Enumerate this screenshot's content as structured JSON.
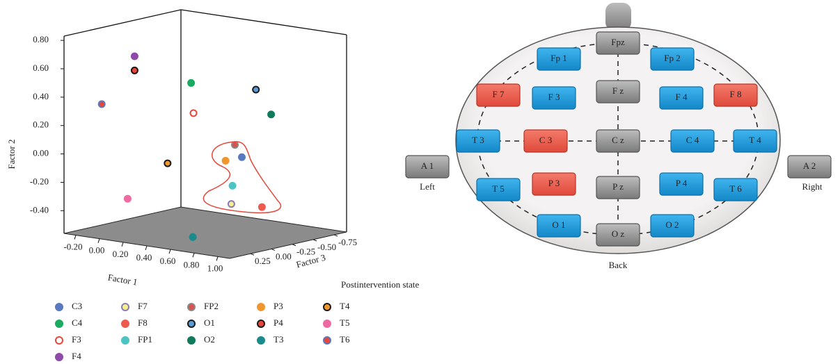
{
  "chart_data": {
    "type": "scatter3d",
    "xlabel": "Factor 1",
    "ylabel": "Factor 2",
    "zlabel": "Factor 3",
    "annotation": "Postintervention state",
    "xlim": [
      -0.3,
      1.1
    ],
    "ylim": [
      -0.56,
      0.83
    ],
    "zlim": [
      0.5,
      -0.9
    ],
    "xticks": [
      {
        "value": -0.2,
        "label": "-0.20"
      },
      {
        "value": 0,
        "label": "0.00"
      },
      {
        "value": 0.2,
        "label": "0.20"
      },
      {
        "value": 0.4,
        "label": "0.40"
      },
      {
        "value": 0.6,
        "label": "0.60"
      },
      {
        "value": 0.8,
        "label": "0.80"
      },
      {
        "value": 1,
        "label": "1.00"
      }
    ],
    "yticks": [
      {
        "value": -0.4,
        "label": "-0.40"
      },
      {
        "value": -0.2,
        "label": "-0.20"
      },
      {
        "value": 0,
        "label": "0.00"
      },
      {
        "value": 0.2,
        "label": "0.20"
      },
      {
        "value": 0.4,
        "label": "0.40"
      },
      {
        "value": 0.6,
        "label": "0.60"
      },
      {
        "value": 0.8,
        "label": "0.80"
      }
    ],
    "zticks": [
      0.25,
      {
        "value": 0,
        "label": "0.00"
      },
      {
        "value": -0.25,
        "label": "-0.25"
      },
      {
        "value": -0.5,
        "label": "-0.50"
      },
      {
        "value": -0.75,
        "label": "-0.75"
      }
    ],
    "series": [
      {
        "name": "C3",
        "color": "#5a78c0",
        "edgecolor": "#5a78c0",
        "x": [
          0.61
        ],
        "values": [
          -0.02
        ],
        "z": [
          -0.34
        ]
      },
      {
        "name": "C4",
        "color": "#1aab60",
        "edgecolor": "#1aab60",
        "x": [
          0.28
        ],
        "values": [
          0.48
        ],
        "z": [
          -0.2
        ]
      },
      {
        "name": "F3",
        "color": "#ffffff",
        "edgecolor": "#e8463a",
        "x": [
          0.3
        ],
        "values": [
          0.27
        ],
        "z": [
          -0.2
        ]
      },
      {
        "name": "F4",
        "color": "#8e4aa8",
        "edgecolor": "#8e4aa8",
        "x": [
          0.0
        ],
        "values": [
          0.67
        ],
        "z": [
          0.08
        ]
      },
      {
        "name": "F7",
        "color": "#f4f08a",
        "edgecolor": "#8a7ab8",
        "x": [
          0.62
        ],
        "values": [
          -0.33
        ],
        "z": [
          -0.2
        ]
      },
      {
        "name": "F8",
        "color": "#ee5a4c",
        "edgecolor": "#ee5a4c",
        "x": [
          0.78
        ],
        "values": [
          -0.35
        ],
        "z": [
          -0.34
        ]
      },
      {
        "name": "FP1",
        "color": "#4cc4c4",
        "edgecolor": "#4cc4c4",
        "x": [
          0.63
        ],
        "values": [
          -0.2
        ],
        "z": [
          -0.2
        ]
      },
      {
        "name": "FP2",
        "color": "#d9534f",
        "edgecolor": "#888888",
        "x": [
          0.65
        ],
        "values": [
          0.09
        ],
        "z": [
          -0.2
        ]
      },
      {
        "name": "O1",
        "color": "#5b9bd5",
        "edgecolor": "#1a1a1a",
        "x": [
          0.63
        ],
        "values": [
          0.44
        ],
        "z": [
          -0.48
        ]
      },
      {
        "name": "O2",
        "color": "#0f7a5c",
        "edgecolor": "#0f7a5c",
        "x": [
          0.66
        ],
        "values": [
          0.25
        ],
        "z": [
          -0.62
        ]
      },
      {
        "name": "P3",
        "color": "#f0962e",
        "edgecolor": "#f0962e",
        "x": [
          0.67
        ],
        "values": [
          0.0
        ],
        "z": [
          -0.06
        ]
      },
      {
        "name": "P4",
        "color": "#e8463a",
        "edgecolor": "#1a1a1a",
        "x": [
          0.0
        ],
        "values": [
          0.57
        ],
        "z": [
          0.08
        ]
      },
      {
        "name": "T3",
        "color": "#1a8a8a",
        "edgecolor": "#1a8a8a",
        "x": [
          0.69
        ],
        "values": [
          -0.48
        ],
        "z": [
          0.36
        ]
      },
      {
        "name": "T4",
        "color": "#f0962e",
        "edgecolor": "#1a1a1a",
        "x": [
          0.18
        ],
        "values": [
          -0.08
        ],
        "z": [
          -0.06
        ]
      },
      {
        "name": "T5",
        "color": "#ee6aa0",
        "edgecolor": "#ee6aa0",
        "x": [
          0.04
        ],
        "values": [
          -0.31
        ],
        "z": [
          0.22
        ]
      },
      {
        "name": "T6",
        "color": "#e8463a",
        "edgecolor": "#5a78c0",
        "x": [
          -0.08
        ],
        "values": [
          0.36
        ],
        "z": [
          0.36
        ]
      }
    ]
  },
  "diagram": {
    "electrodes": [
      "Fpz",
      "Fp 1",
      "Fp 2",
      "F 7",
      "F 3",
      "F z",
      "F 4",
      "F 8",
      "T 3",
      "C 3",
      "C z",
      "C 4",
      "T 4",
      "T 5",
      "P 3",
      "P z",
      "P 4",
      "T 6",
      "O 1",
      "O z",
      "O 2",
      "A 1",
      "A 2"
    ],
    "left": "Left",
    "right": "Right",
    "back": "Back"
  }
}
